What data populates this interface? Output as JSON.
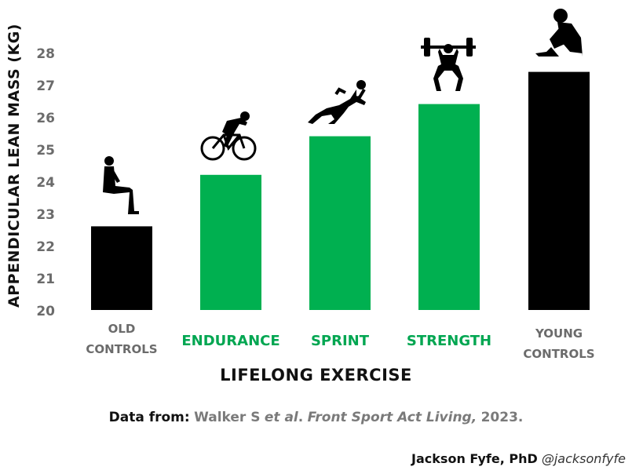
{
  "chart_data": {
    "type": "bar",
    "ylabel": "APPENDICULAR LEAN MASS (KG)",
    "xlabel": "LIFELONG EXERCISE",
    "ylim": [
      20,
      28.5
    ],
    "yticks": [
      20,
      21,
      22,
      23,
      24,
      25,
      26,
      27,
      28
    ],
    "grid": false,
    "categories": [
      {
        "line1": "OLD",
        "line2": "CONTROLS",
        "style": "gray"
      },
      {
        "line1": "ENDURANCE",
        "line2": "",
        "style": "green"
      },
      {
        "line1": "SPRINT",
        "line2": "",
        "style": "green"
      },
      {
        "line1": "STRENGTH",
        "line2": "",
        "style": "green"
      },
      {
        "line1": "YOUNG",
        "line2": "CONTROLS",
        "style": "gray"
      }
    ],
    "values": [
      22.6,
      24.2,
      25.4,
      26.4,
      27.4
    ],
    "bar_colors": [
      "#000000",
      "#00b050",
      "#00b050",
      "#00b050",
      "#000000"
    ],
    "icons": [
      "sitting-elderly-man-icon",
      "cyclist-icon",
      "sprinter-icon",
      "weightlifter-icon",
      "sitting-young-man-icon"
    ],
    "label_colors": {
      "gray": "#6b6b6b",
      "green": "#00a651"
    }
  },
  "footer": {
    "source_prefix": "Data from:",
    "source_authors": "Walker S",
    "source_etal": "et al",
    "source_dot": ".",
    "source_journal": "Front Sport Act Living,",
    "source_year": "2023.",
    "credit_name": "Jackson Fyfe, PhD",
    "credit_handle": "@jacksonfyfe"
  }
}
